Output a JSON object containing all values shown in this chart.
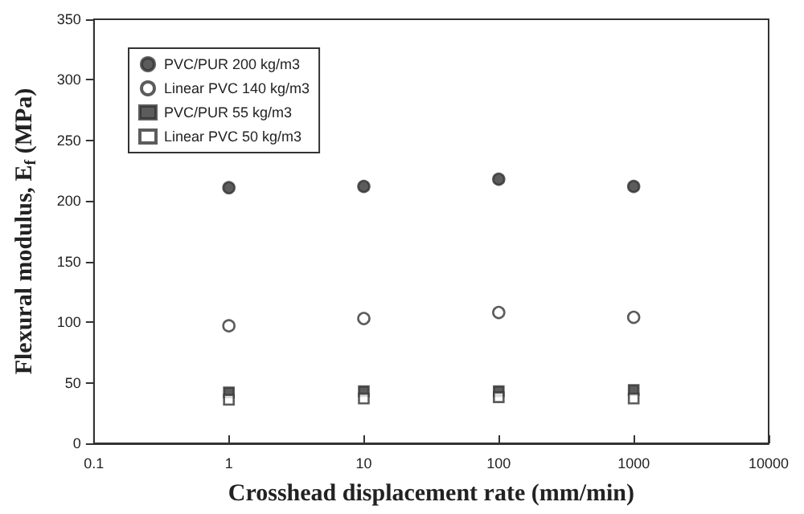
{
  "chart_data": {
    "type": "scatter",
    "xlabel": "Crosshead displacement rate (mm/min)",
    "ylabel": "Flexural modulus, E$_{f}$ (MPa)",
    "x": [
      1,
      10,
      100,
      1000
    ],
    "series": [
      {
        "name": "PVC/PUR 200 kg/m3",
        "color": "#333333",
        "marker": "circle",
        "values": [
          211,
          212,
          218,
          212
        ]
      },
      {
        "name": "Linear PVC 140 kg/m3",
        "color": "#ffffff",
        "marker": "circle",
        "values": [
          97,
          103,
          108,
          104
        ]
      },
      {
        "name": "PVC/PUR 55 kg/m3",
        "color": "#333333",
        "marker": "square",
        "values": [
          42,
          43,
          43,
          44
        ]
      },
      {
        "name": "Linear PVC 50 kg/m3",
        "color": "#ffffff",
        "marker": "square",
        "values": [
          36,
          37,
          38,
          37
        ]
      }
    ],
    "log": "x",
    "xlim": [
      0.1,
      10000
    ],
    "xticks": [
      0.1,
      1,
      10,
      100,
      1000,
      10000
    ],
    "ylim": [
      0,
      350
    ],
    "yticks": [
      0,
      50,
      100,
      150,
      200,
      250,
      300,
      350
    ],
    "grid": false,
    "legend": "top left"
  }
}
